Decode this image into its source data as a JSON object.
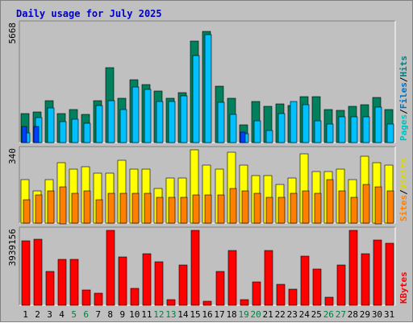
{
  "chart_data": [
    {
      "panel": "hits_files_pages",
      "type": "bar",
      "title": "Daily usage for July 2025",
      "ymax_label": "5668",
      "right_labels": [
        "Pages",
        "/",
        "Files",
        "/",
        "Hits"
      ],
      "categories": [
        "1",
        "2",
        "3",
        "4",
        "5",
        "6",
        "7",
        "8",
        "9",
        "10",
        "11",
        "12",
        "13",
        "14",
        "15",
        "16",
        "17",
        "18",
        "19",
        "20",
        "21",
        "22",
        "23",
        "24",
        "25",
        "26",
        "27",
        "28",
        "29",
        "30",
        "31"
      ],
      "series": [
        {
          "name": "Hits",
          "color": "#00805c",
          "values": [
            1380,
            1480,
            2010,
            1390,
            1570,
            1340,
            2010,
            3600,
            2110,
            3020,
            2790,
            2450,
            2110,
            2400,
            4860,
            5330,
            2680,
            2120,
            860,
            1980,
            1720,
            1840,
            1790,
            2210,
            2210,
            1570,
            1550,
            1730,
            1820,
            2170,
            1600
          ]
        },
        {
          "name": "Files",
          "color": "#00c0ff",
          "values": [
            480,
            1200,
            1670,
            1010,
            1100,
            930,
            1780,
            2010,
            1600,
            2650,
            2540,
            1950,
            1950,
            2220,
            4180,
            5160,
            1930,
            1360,
            420,
            1040,
            560,
            1390,
            1950,
            1820,
            1040,
            900,
            1230,
            1230,
            1240,
            1690,
            890
          ]
        },
        {
          "name": "Pages",
          "color": "#0040ff",
          "values": [
            790,
            790,
            0,
            0,
            0,
            0,
            0,
            0,
            0,
            0,
            0,
            0,
            0,
            0,
            0,
            0,
            0,
            0,
            520,
            0,
            0,
            0,
            0,
            0,
            0,
            0,
            0,
            0,
            0,
            0,
            0
          ]
        }
      ]
    },
    {
      "panel": "visits_sites",
      "type": "bar",
      "ymax_label": "340",
      "right_labels": [
        "Sites",
        "/",
        "Visits"
      ],
      "series": [
        {
          "name": "Visits",
          "color": "#ffff00",
          "values": [
            200,
            150,
            200,
            280,
            250,
            260,
            230,
            230,
            290,
            250,
            250,
            160,
            210,
            210,
            340,
            270,
            250,
            330,
            270,
            220,
            220,
            180,
            210,
            320,
            240,
            240,
            250,
            200,
            310,
            280,
            270
          ]
        },
        {
          "name": "Sites",
          "color": "#ff8000",
          "values": [
            110,
            130,
            150,
            170,
            140,
            150,
            110,
            140,
            140,
            140,
            140,
            120,
            120,
            120,
            130,
            130,
            130,
            160,
            150,
            140,
            120,
            120,
            140,
            150,
            140,
            200,
            150,
            120,
            180,
            170,
            150
          ]
        }
      ]
    },
    {
      "panel": "kbytes",
      "type": "bar",
      "ymax_label": "3939156",
      "right_labels": [
        "KBytes"
      ],
      "weekend_color": "#008040",
      "weekend_days": [
        5,
        6,
        12,
        13,
        19,
        20,
        26,
        27
      ],
      "series": [
        {
          "name": "KBytes",
          "color": "#ff0000",
          "values": [
            3390000,
            3460000,
            1780000,
            2420000,
            2420000,
            810000,
            640000,
            3920000,
            2560000,
            880000,
            2710000,
            2290000,
            280000,
            2110000,
            3940000,
            210000,
            1780000,
            2900000,
            300000,
            1220000,
            2860000,
            1090000,
            840000,
            2590000,
            1890000,
            440000,
            2100000,
            3930000,
            2710000,
            3440000,
            3280000
          ]
        }
      ]
    }
  ]
}
